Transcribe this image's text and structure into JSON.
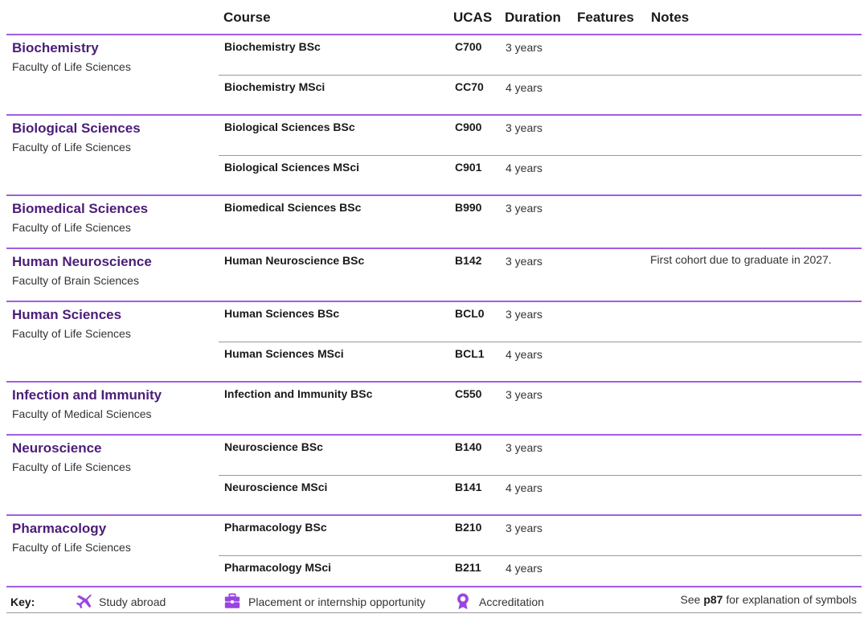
{
  "header": {
    "course": "Course",
    "ucas": "UCAS",
    "duration": "Duration",
    "features": "Features",
    "notes": "Notes"
  },
  "groups": [
    {
      "subject": "Biochemistry",
      "faculty": "Faculty of Life Sciences",
      "courses": [
        {
          "name": "Biochemistry BSc",
          "ucas": "C700",
          "duration": "3 years",
          "note": ""
        },
        {
          "name": "Biochemistry MSci",
          "ucas": "CC70",
          "duration": "4 years",
          "note": ""
        }
      ]
    },
    {
      "subject": "Biological Sciences",
      "faculty": "Faculty of Life Sciences",
      "courses": [
        {
          "name": "Biological Sciences BSc",
          "ucas": "C900",
          "duration": "3 years",
          "note": ""
        },
        {
          "name": "Biological Sciences MSci",
          "ucas": "C901",
          "duration": "4 years",
          "note": ""
        }
      ]
    },
    {
      "subject": "Biomedical Sciences",
      "faculty": "Faculty of Life Sciences",
      "courses": [
        {
          "name": "Biomedical Sciences BSc",
          "ucas": "B990",
          "duration": "3 years",
          "note": ""
        }
      ]
    },
    {
      "subject": "Human Neuroscience",
      "faculty": "Faculty of Brain Sciences",
      "courses": [
        {
          "name": "Human Neuroscience BSc",
          "ucas": "B142",
          "duration": "3 years",
          "note": "First cohort due to graduate in 2027."
        }
      ]
    },
    {
      "subject": "Human Sciences",
      "faculty": "Faculty of Life Sciences",
      "courses": [
        {
          "name": "Human Sciences BSc",
          "ucas": "BCL0",
          "duration": "3 years",
          "note": ""
        },
        {
          "name": "Human Sciences MSci",
          "ucas": "BCL1",
          "duration": "4 years",
          "note": ""
        }
      ]
    },
    {
      "subject": "Infection and Immunity",
      "faculty": "Faculty of Medical Sciences",
      "courses": [
        {
          "name": "Infection and Immunity BSc",
          "ucas": "C550",
          "duration": "3 years",
          "note": ""
        }
      ]
    },
    {
      "subject": "Neuroscience",
      "faculty": "Faculty of Life Sciences",
      "courses": [
        {
          "name": "Neuroscience BSc",
          "ucas": "B140",
          "duration": "3 years",
          "note": ""
        },
        {
          "name": "Neuroscience MSci",
          "ucas": "B141",
          "duration": "4 years",
          "note": ""
        }
      ]
    },
    {
      "subject": "Pharmacology",
      "faculty": "Faculty of Life Sciences",
      "courses": [
        {
          "name": "Pharmacology BSc",
          "ucas": "B210",
          "duration": "3 years",
          "note": ""
        },
        {
          "name": "Pharmacology MSci",
          "ucas": "B211",
          "duration": "4 years",
          "note": ""
        }
      ]
    }
  ],
  "key": {
    "label": "Key:",
    "items": [
      {
        "icon": "airplane-icon",
        "text": "Study abroad"
      },
      {
        "icon": "briefcase-icon",
        "text": "Placement or internship opportunity"
      },
      {
        "icon": "award-rosette-icon",
        "text": "Accreditation"
      }
    ],
    "see_prefix": "See",
    "see_page": "p87",
    "see_suffix": "for explanation of symbols"
  },
  "colors": {
    "accent": "#a05ee0",
    "subject": "#4b1d78"
  }
}
